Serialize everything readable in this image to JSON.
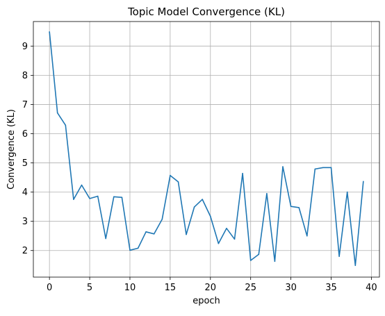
{
  "chart_data": {
    "type": "line",
    "title": "Topic Model Convergence (KL)",
    "xlabel": "epoch",
    "ylabel": "Convergence (KL)",
    "xlim": [
      -2,
      41
    ],
    "ylim": [
      1.09,
      9.84
    ],
    "xticks": [
      "0",
      "5",
      "10",
      "15",
      "20",
      "25",
      "30",
      "35",
      "40"
    ],
    "yticks": [
      "2",
      "3",
      "4",
      "5",
      "6",
      "7",
      "8",
      "9"
    ],
    "grid": true,
    "legend": "none",
    "line_color": "#1f77b4",
    "x": [
      0,
      1,
      2,
      3,
      4,
      5,
      6,
      7,
      8,
      9,
      10,
      11,
      12,
      13,
      14,
      15,
      16,
      17,
      18,
      19,
      20,
      21,
      22,
      23,
      24,
      25,
      26,
      27,
      28,
      29,
      30,
      31,
      32,
      33,
      34,
      35,
      36,
      37,
      38,
      39
    ],
    "series": [
      {
        "values": [
          9.48,
          6.71,
          6.29,
          3.75,
          4.24,
          3.78,
          3.86,
          2.41,
          3.84,
          3.82,
          2.01,
          2.08,
          2.64,
          2.57,
          3.07,
          4.57,
          4.35,
          2.55,
          3.49,
          3.75,
          3.17,
          2.24,
          2.76,
          2.39,
          4.64,
          1.66,
          1.87,
          3.95,
          1.63,
          4.87,
          3.51,
          3.47,
          2.5,
          4.79,
          4.84,
          4.84,
          1.8,
          4.0,
          1.49,
          4.36
        ]
      }
    ]
  }
}
